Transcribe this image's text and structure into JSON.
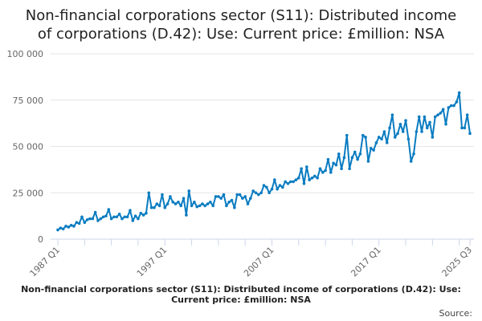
{
  "chart_data": {
    "type": "line",
    "title_lines": [
      "Non-financial corporations sector (S11): Distributed income",
      "of corporations (D.42): Use: Current price: £million: NSA"
    ],
    "xlabel": "Non-financial corporations sector (S11): Distributed income of corporations (D.42): Use: Current price: £million: NSA",
    "source": "Source:",
    "ylabel": "",
    "ylim": [
      0,
      100000
    ],
    "yticks": [
      0,
      25000,
      50000,
      75000,
      100000
    ],
    "ytick_labels": [
      "0",
      "25 000",
      "50 000",
      "75 000",
      "100 000"
    ],
    "x_start": "1987 Q1",
    "x_end": "2025 Q3",
    "xtick_labels": [
      {
        "index": 0,
        "label": "1987 Q1"
      },
      {
        "index": 40,
        "label": "1997 Q1"
      },
      {
        "index": 80,
        "label": "2007 Q1"
      },
      {
        "index": 120,
        "label": "2017 Q1"
      },
      {
        "index": 154,
        "label": "2025 Q3"
      }
    ],
    "minor_tick_every": 10,
    "color": "#0a7cc1",
    "grid": true,
    "series": [
      {
        "name": "Distributed income of corporations (D.42)",
        "values": [
          5000,
          6000,
          5500,
          7000,
          6500,
          7500,
          7000,
          9000,
          8500,
          12000,
          9000,
          10500,
          11000,
          11000,
          14500,
          10000,
          11000,
          12000,
          12500,
          16000,
          11000,
          12000,
          12000,
          13500,
          11000,
          12000,
          12000,
          15500,
          10000,
          12500,
          11000,
          14000,
          13000,
          14000,
          25000,
          17000,
          17000,
          19000,
          18000,
          24000,
          17000,
          19000,
          23000,
          20000,
          19000,
          20000,
          18000,
          22000,
          13000,
          26000,
          18000,
          20000,
          17500,
          18000,
          19000,
          18000,
          19000,
          20000,
          18000,
          23000,
          23000,
          22000,
          24000,
          18000,
          20000,
          21000,
          17000,
          24000,
          24000,
          22000,
          23000,
          19000,
          22000,
          26000,
          25000,
          24000,
          25000,
          29000,
          28000,
          25000,
          27000,
          32000,
          27000,
          29000,
          28000,
          31000,
          30000,
          31000,
          31000,
          32000,
          33000,
          38000,
          30000,
          39000,
          32000,
          33000,
          34000,
          33000,
          38000,
          36000,
          37000,
          43000,
          36000,
          41000,
          40000,
          46000,
          38000,
          44000,
          56000,
          38000,
          44000,
          47000,
          43000,
          46000,
          56000,
          55000,
          42000,
          49000,
          48000,
          52000,
          55000,
          54000,
          58000,
          52000,
          60000,
          67000,
          55000,
          57000,
          62000,
          58000,
          64000,
          54000,
          42000,
          46000,
          58000,
          66000,
          58000,
          66000,
          60000,
          63000,
          55000,
          66000,
          67000,
          68000,
          70000,
          62000,
          71000,
          72000,
          72000,
          74000,
          79000,
          60000,
          60000,
          67000,
          57000
        ]
      }
    ]
  }
}
